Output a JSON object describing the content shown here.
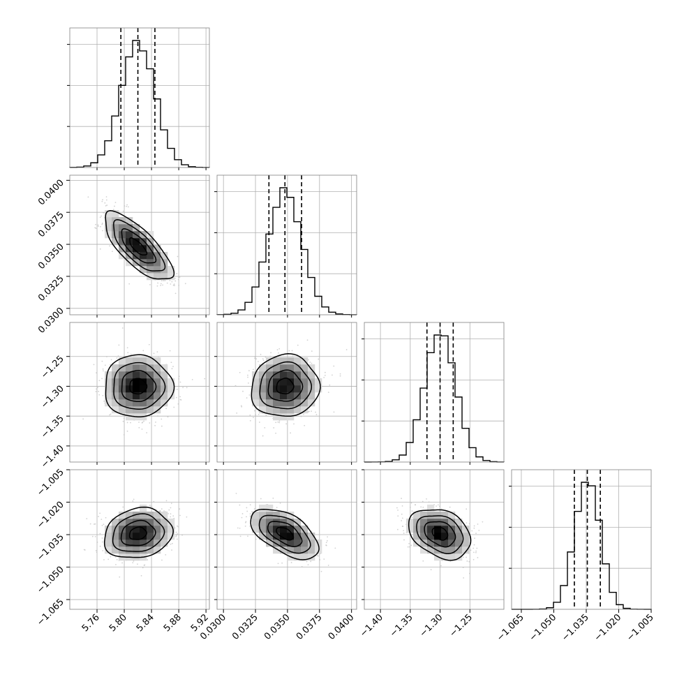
{
  "chart_data": {
    "type": "corner",
    "grid": true,
    "parameters": [
      {
        "mean": 5.82,
        "sd": 0.025,
        "quantiles": [
          5.795,
          5.82,
          5.845
        ],
        "range": [
          5.72,
          5.925
        ],
        "ticks": [
          5.76,
          5.8,
          5.84,
          5.88,
          5.92
        ],
        "tick_labels": [
          "5.76",
          "5.80",
          "5.84",
          "5.88",
          "5.92"
        ]
      },
      {
        "mean": 0.0348,
        "sd": 0.00133,
        "quantiles": [
          0.03355,
          0.0348,
          0.0361
        ],
        "range": [
          0.0295,
          0.0404
        ],
        "ticks": [
          0.03,
          0.0325,
          0.035,
          0.0375,
          0.04
        ],
        "tick_labels": [
          "0.0300",
          "0.0325",
          "0.0350",
          "0.0375",
          "0.0400"
        ]
      },
      {
        "mean": -1.3,
        "sd": 0.026,
        "quantiles": [
          -1.322,
          -1.3,
          -1.278
        ],
        "range": [
          -1.427,
          -1.193
        ],
        "ticks": [
          -1.4,
          -1.35,
          -1.3,
          -1.25
        ],
        "tick_labels": [
          "−1.40",
          "−1.35",
          "−1.30",
          "−1.25"
        ]
      },
      {
        "mean": -1.0345,
        "sd": 0.0058,
        "quantiles": [
          -1.0405,
          -1.0345,
          -1.0285
        ],
        "range": [
          -1.0695,
          -1.005
        ],
        "ticks": [
          -1.065,
          -1.05,
          -1.035,
          -1.02,
          -1.005
        ],
        "tick_labels": [
          "−1.065",
          "−1.050",
          "−1.035",
          "−1.020",
          "−1.005"
        ]
      }
    ],
    "correlations": [
      {
        "pair": [
          0,
          1
        ],
        "rho": -0.75
      },
      {
        "pair": [
          0,
          2
        ],
        "rho": 0.0
      },
      {
        "pair": [
          1,
          2
        ],
        "rho": 0.05
      },
      {
        "pair": [
          0,
          3
        ],
        "rho": 0.15
      },
      {
        "pair": [
          1,
          3
        ],
        "rho": -0.55
      },
      {
        "pair": [
          2,
          3
        ],
        "rho": -0.3
      }
    ],
    "histogram_bins": 20,
    "contour_levels_sigma": [
      0.5,
      1.0,
      1.5,
      2.0
    ],
    "colors": {
      "line": "#000000",
      "grid": "#b0b0b0",
      "scatter": "#bdbdbd",
      "frame": "#7f7f7f"
    }
  }
}
